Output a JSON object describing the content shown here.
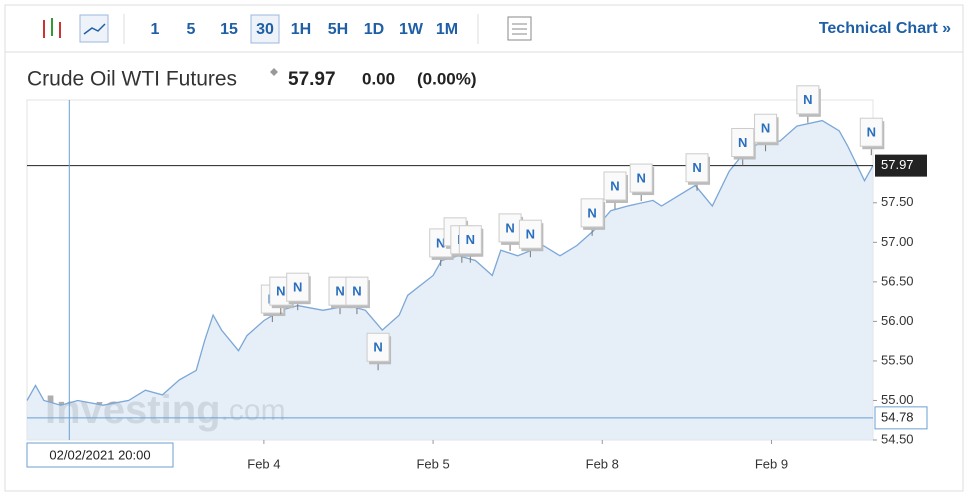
{
  "toolbar": {
    "intervals": [
      "1",
      "5",
      "15",
      "30",
      "1H",
      "5H",
      "1D",
      "1W",
      "1M"
    ],
    "active": "30",
    "link": "Technical Chart »"
  },
  "header": {
    "title": "Crude Oil WTI Futures",
    "price": "57.97",
    "change": "0.00",
    "change_pct": "(0.00%)"
  },
  "watermark": {
    "brand": "Investing",
    "suffix": ".com"
  },
  "chart_data": {
    "type": "line",
    "color": "#7ba7d7",
    "x": [
      0,
      1,
      2,
      4,
      6,
      9,
      12,
      14,
      16,
      18,
      20,
      21,
      22,
      23,
      25,
      26,
      28,
      30,
      32,
      35,
      38,
      40,
      42,
      44,
      45,
      48,
      49,
      51,
      53,
      55,
      56,
      58,
      61,
      63,
      65,
      67,
      69,
      71,
      74,
      75,
      77,
      79,
      81,
      83,
      84,
      85,
      87,
      89,
      91,
      94,
      96,
      97,
      99,
      100
    ],
    "values": [
      55.0,
      55.19,
      55.0,
      54.94,
      55.0,
      54.94,
      55.0,
      55.13,
      55.07,
      55.26,
      55.38,
      55.76,
      56.08,
      55.89,
      55.63,
      55.82,
      56.01,
      56.14,
      56.2,
      56.14,
      56.2,
      56.14,
      55.89,
      56.08,
      56.33,
      56.58,
      56.77,
      56.83,
      56.77,
      56.58,
      56.9,
      56.83,
      56.96,
      56.83,
      56.96,
      57.15,
      57.4,
      57.46,
      57.53,
      57.46,
      57.59,
      57.72,
      57.46,
      57.9,
      58.03,
      58.16,
      58.28,
      58.28,
      58.47,
      58.54,
      58.41,
      58.22,
      57.78,
      57.97
    ],
    "xlim": [
      0,
      100
    ],
    "ylim": [
      54.5,
      58.8
    ],
    "xticks": [
      {
        "value": 28,
        "label": "Feb 4"
      },
      {
        "value": 48,
        "label": "Feb 5"
      },
      {
        "value": 68,
        "label": "Feb 8"
      },
      {
        "value": 88,
        "label": "Feb 9"
      }
    ],
    "yticks": [
      {
        "value": 54.5,
        "label": "54.50"
      },
      {
        "value": 55,
        "label": "55.00"
      },
      {
        "value": 55.5,
        "label": "55.50"
      },
      {
        "value": 56,
        "label": "56.00"
      },
      {
        "value": 56.5,
        "label": "56.50"
      },
      {
        "value": 57,
        "label": "57.00"
      },
      {
        "value": 57.5,
        "label": "57.50"
      }
    ],
    "last_price": 57.97,
    "crosshair": {
      "x": 5,
      "y": 54.78,
      "x_label": "02/02/2021 20:00"
    },
    "news": [
      {
        "x": 29,
        "y": 56.27,
        "label": "N"
      },
      {
        "x": 30,
        "y": 56.37,
        "label": "N"
      },
      {
        "x": 32,
        "y": 56.42,
        "label": "N"
      },
      {
        "x": 37,
        "y": 56.37,
        "label": "N"
      },
      {
        "x": 39,
        "y": 56.37,
        "label": "N"
      },
      {
        "x": 41.5,
        "y": 55.66,
        "label": "N"
      },
      {
        "x": 48.9,
        "y": 56.98,
        "label": "N"
      },
      {
        "x": 50.6,
        "y": 57.12,
        "label": "N"
      },
      {
        "x": 51.4,
        "y": 57.02,
        "label": "N"
      },
      {
        "x": 52.4,
        "y": 57.02,
        "label": "N"
      },
      {
        "x": 57.1,
        "y": 57.17,
        "label": "N"
      },
      {
        "x": 59.5,
        "y": 57.09,
        "label": "N"
      },
      {
        "x": 66.8,
        "y": 57.36,
        "label": "N"
      },
      {
        "x": 69.5,
        "y": 57.7,
        "label": "N"
      },
      {
        "x": 72.6,
        "y": 57.8,
        "label": "N"
      },
      {
        "x": 79.2,
        "y": 57.93,
        "label": "N"
      },
      {
        "x": 84.6,
        "y": 58.25,
        "label": "N"
      },
      {
        "x": 87.3,
        "y": 58.43,
        "label": "N"
      },
      {
        "x": 92.3,
        "y": 58.79,
        "label": "N"
      },
      {
        "x": 99.8,
        "y": 58.38,
        "label": "N"
      }
    ]
  }
}
